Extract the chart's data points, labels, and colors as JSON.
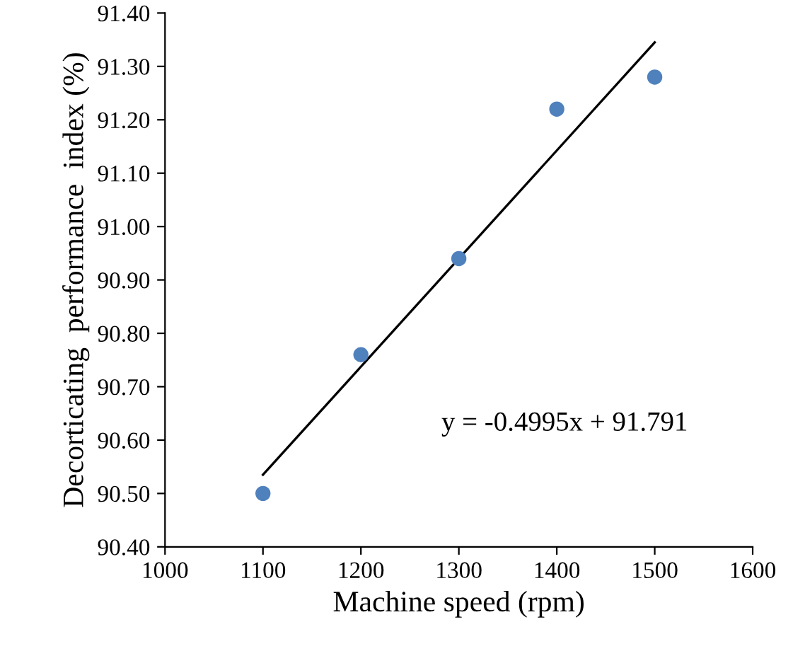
{
  "chart_data": {
    "type": "scatter",
    "xlabel": "Machine speed (rpm)",
    "ylabel": "Decorticating  performance  index (%)",
    "series": [
      {
        "color": "#4f81bd",
        "marker": "circle",
        "x": [
          1100,
          1200,
          1300,
          1400,
          1500
        ],
        "values": [
          90.5,
          90.76,
          90.94,
          91.22,
          91.28
        ]
      },
      {
        "type": "line",
        "color": "#000000",
        "marker": "none",
        "x": [
          1100,
          1500
        ],
        "values": [
          90.535,
          91.345
        ]
      }
    ],
    "annotations": [
      "y = -0.4995x + 91.791"
    ],
    "xlim": [
      1000,
      1600
    ],
    "xticks": [
      1000,
      1100,
      1200,
      1300,
      1400,
      1500,
      1600
    ],
    "ylim": [
      90.4,
      91.4
    ],
    "yticks": [
      {
        "value": 90.4,
        "label": "90.40"
      },
      {
        "value": 90.5,
        "label": "90.50"
      },
      {
        "value": 90.6,
        "label": "90.60"
      },
      {
        "value": 90.7,
        "label": "90.70"
      },
      {
        "value": 90.8,
        "label": "90.80"
      },
      {
        "value": 90.9,
        "label": "90.90"
      },
      {
        "value": 91.0,
        "label": "91.00"
      },
      {
        "value": 91.1,
        "label": "91.10"
      },
      {
        "value": 91.2,
        "label": "91.20"
      },
      {
        "value": 91.3,
        "label": "91.30"
      },
      {
        "value": 91.4,
        "label": "91.40"
      }
    ],
    "grid": false,
    "legend": false
  }
}
